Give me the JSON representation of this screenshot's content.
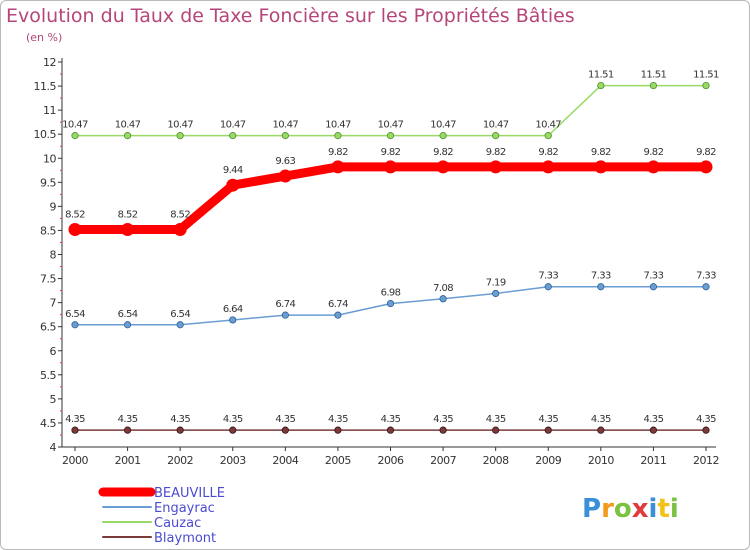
{
  "chart_data": {
    "type": "line",
    "title": "Evolution du Taux de Taxe Foncière sur les Propriétés Bâties",
    "subtitle": "(en %)",
    "xlabel": "",
    "ylabel": "",
    "x": [
      "2000",
      "2001",
      "2002",
      "2003",
      "2004",
      "2005",
      "2006",
      "2007",
      "2008",
      "2009",
      "2010",
      "2011",
      "2012"
    ],
    "ylim": [
      4,
      12
    ],
    "yticks": [
      "4",
      "4.5",
      "5",
      "5.5",
      "6",
      "6.5",
      "7",
      "7.5",
      "8",
      "8.5",
      "9",
      "9.5",
      "10",
      "10.5",
      "11",
      "11.5",
      "12"
    ],
    "grid": false,
    "legend_position": "bottom-left",
    "series": [
      {
        "name": "BEAUVILLE",
        "color": "#ff0000",
        "values": [
          8.52,
          8.52,
          8.52,
          9.44,
          9.63,
          9.82,
          9.82,
          9.82,
          9.82,
          9.82,
          9.82,
          9.82,
          9.82
        ],
        "labels": [
          "8.52",
          "8.52",
          "8.52",
          "9.44",
          "9.63",
          "9.82",
          "9.82",
          "9.82",
          "9.82",
          "9.82",
          "9.82",
          "9.82",
          "9.82"
        ]
      },
      {
        "name": "Engayrac",
        "color": "#6a9ed3",
        "values": [
          6.54,
          6.54,
          6.54,
          6.64,
          6.74,
          6.74,
          6.98,
          7.08,
          7.19,
          7.33,
          7.33,
          7.33,
          7.33
        ],
        "labels": [
          "6.54",
          "6.54",
          "6.54",
          "6.64",
          "6.74",
          "6.74",
          "6.98",
          "7.08",
          "7.19",
          "7.33",
          "7.33",
          "7.33",
          "7.33"
        ]
      },
      {
        "name": "Cauzac",
        "color": "#99d966",
        "values": [
          10.47,
          10.47,
          10.47,
          10.47,
          10.47,
          10.47,
          10.47,
          10.47,
          10.47,
          10.47,
          11.51,
          11.51,
          11.51
        ],
        "labels": [
          "10.47",
          "10.47",
          "10.47",
          "10.47",
          "10.47",
          "10.47",
          "10.47",
          "10.47",
          "10.47",
          "10.47",
          "11.51",
          "11.51",
          "11.51"
        ]
      },
      {
        "name": "Blaymont",
        "color": "#7a3a3a",
        "values": [
          4.35,
          4.35,
          4.35,
          4.35,
          4.35,
          4.35,
          4.35,
          4.35,
          4.35,
          4.35,
          4.35,
          4.35,
          4.35
        ],
        "labels": [
          "4.35",
          "4.35",
          "4.35",
          "4.35",
          "4.35",
          "4.35",
          "4.35",
          "4.35",
          "4.35",
          "4.35",
          "4.35",
          "4.35",
          "4.35"
        ]
      }
    ]
  },
  "logo": {
    "text": "Proxiti",
    "letters": [
      "P",
      "r",
      "o",
      "x",
      "i",
      "t",
      "i"
    ]
  }
}
